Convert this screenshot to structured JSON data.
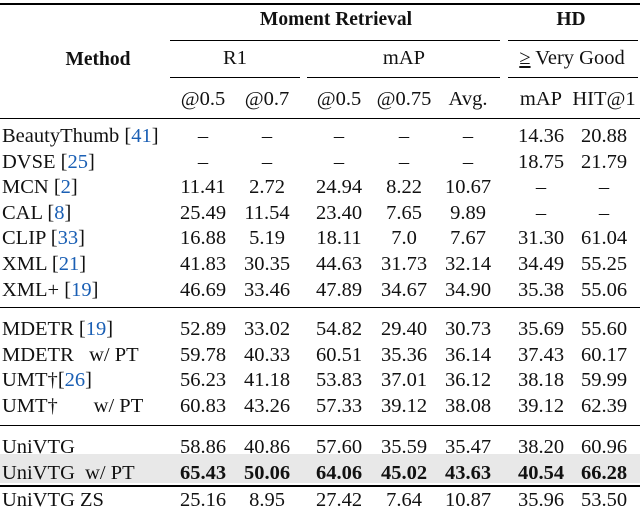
{
  "header": {
    "method": "Method",
    "moment_retrieval": "Moment Retrieval",
    "hd": "HD",
    "r1": "R1",
    "map": "mAP",
    "very_good_symbol": "≥",
    "very_good_text": " Very Good",
    "sub": [
      "@0.5",
      "@0.7",
      "@0.5",
      "@0.75",
      "Avg.",
      "mAP",
      "HIT@1"
    ]
  },
  "groups": [
    {
      "rows": [
        {
          "name": "BeautyThumb ",
          "cite": "41",
          "cells": [
            "–",
            "–",
            "–",
            "–",
            "–",
            "14.36",
            "20.88"
          ]
        },
        {
          "name": "DVSE ",
          "cite": "25",
          "cells": [
            "–",
            "–",
            "–",
            "–",
            "–",
            "18.75",
            "21.79"
          ]
        },
        {
          "name": "MCN ",
          "cite": "2",
          "cells": [
            "11.41",
            "2.72",
            "24.94",
            "8.22",
            "10.67",
            "–",
            "–"
          ]
        },
        {
          "name": "CAL ",
          "cite": "8",
          "cells": [
            "25.49",
            "11.54",
            "23.40",
            "7.65",
            "9.89",
            "–",
            "–"
          ]
        },
        {
          "name": "CLIP ",
          "cite": "33",
          "cells": [
            "16.88",
            "5.19",
            "18.11",
            "7.0",
            "7.67",
            "31.30",
            "61.04"
          ]
        },
        {
          "name": "XML ",
          "cite": "21",
          "cells": [
            "41.83",
            "30.35",
            "44.63",
            "31.73",
            "32.14",
            "34.49",
            "55.25"
          ]
        },
        {
          "name": "XML+ ",
          "cite": "19",
          "cells": [
            "46.69",
            "33.46",
            "47.89",
            "34.67",
            "34.90",
            "35.38",
            "55.06"
          ]
        }
      ]
    },
    {
      "rows": [
        {
          "name": "MDETR ",
          "cite": "19",
          "cells": [
            "52.89",
            "33.02",
            "54.82",
            "29.40",
            "30.73",
            "35.69",
            "55.60"
          ]
        },
        {
          "name": "MDETR   w/ PT",
          "cite": "",
          "cells": [
            "59.78",
            "40.33",
            "60.51",
            "35.36",
            "36.14",
            "37.43",
            "60.17"
          ]
        },
        {
          "name": "UMT†",
          "cite": "26",
          "cells": [
            "56.23",
            "41.18",
            "53.83",
            "37.01",
            "36.12",
            "38.18",
            "59.99"
          ]
        },
        {
          "name": "UMT†       w/ PT",
          "cite": "",
          "cells": [
            "60.83",
            "43.26",
            "57.33",
            "39.12",
            "38.08",
            "39.12",
            "62.39"
          ]
        }
      ]
    },
    {
      "rows": [
        {
          "name": "UniVTG",
          "cite": "",
          "cells": [
            "58.86",
            "40.86",
            "57.60",
            "35.59",
            "35.47",
            "38.20",
            "60.96"
          ]
        },
        {
          "name": "UniVTG  w/ PT",
          "cite": "",
          "bold": true,
          "cells": [
            "65.43",
            "50.06",
            "64.06",
            "45.02",
            "43.63",
            "40.54",
            "66.28"
          ]
        },
        {
          "name": "UniVTG ZS",
          "cite": "",
          "shaded": true,
          "cells": [
            "25.16",
            "8.95",
            "27.42",
            "7.64",
            "10.87",
            "35.96",
            "53.50"
          ]
        }
      ]
    }
  ]
}
